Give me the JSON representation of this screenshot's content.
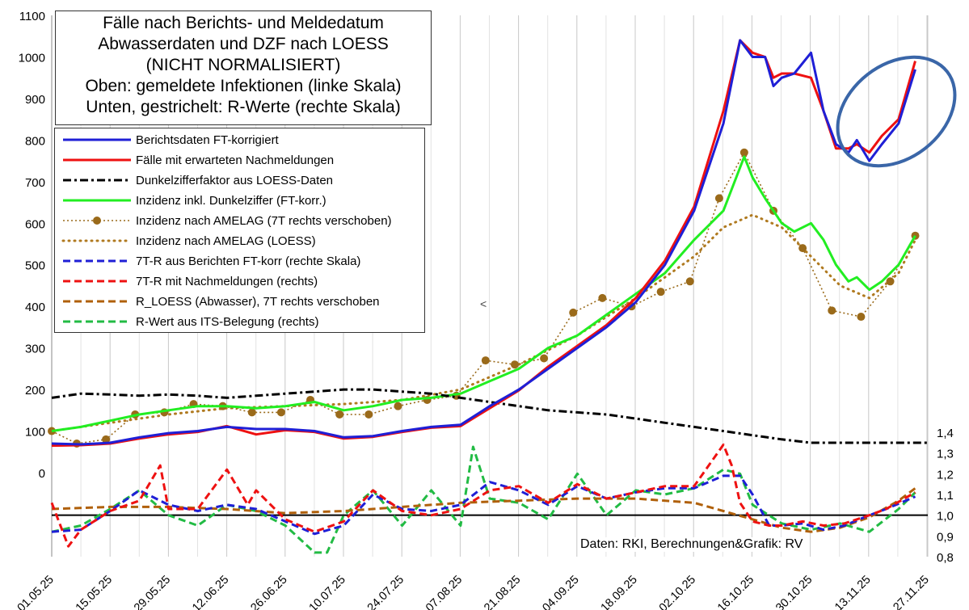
{
  "title": {
    "lines": [
      "Fälle nach Berichts- und Meldedatum",
      "Abwasserdaten und DZF nach LOESS",
      "(NICHT NORMALISIERT)",
      "Oben: gemeldete Infektionen (linke Skala)",
      "Unten, gestrichelt: R-Werte (rechte Skala)"
    ]
  },
  "credit": "Daten: RKI, Berechnungen&Grafik: RV",
  "cursor_glyph": "<",
  "legend": [
    {
      "label": "Berichtsdaten FT-korrigiert",
      "color": "#1f1fd6",
      "style": "solid"
    },
    {
      "label": "Fälle mit erwarteten Nachmeldungen",
      "color": "#ee1111",
      "style": "solid"
    },
    {
      "label": "Dunkelzifferfaktor aus LOESS-Daten",
      "color": "#000000",
      "style": "dashdot"
    },
    {
      "label": "Inzidenz inkl. Dunkelziffer (FT-korr.)",
      "color": "#22ee22",
      "style": "solid"
    },
    {
      "label": "Inzidenz nach AMELAG (7T rechts verschoben)",
      "color": "#9a6a1a",
      "style": "dotmarker"
    },
    {
      "label": "Inzidenz nach AMELAG (LOESS)",
      "color": "#b07a20",
      "style": "dots"
    },
    {
      "label": "7T-R aus Berichten FT-korr (rechte Skala)",
      "color": "#1f1fd6",
      "style": "dashed"
    },
    {
      "label": "7T-R mit Nachmeldungen (rechts)",
      "color": "#ee1111",
      "style": "dashed"
    },
    {
      "label": "R_LOESS (Abwasser), 7T rechts verschoben",
      "color": "#b0600a",
      "style": "dashed"
    },
    {
      "label": "R-Wert aus ITS-Belegung (rechts)",
      "color": "#22bb44",
      "style": "dashed"
    }
  ],
  "chart_data": {
    "type": "line",
    "x_tick_labels": [
      "01.05.25",
      "15.05.25",
      "29.05.25",
      "12.06.25",
      "26.06.25",
      "10.07.25",
      "24.07.25",
      "07.08.25",
      "21.08.25",
      "04.09.25",
      "18.09.25",
      "02.10.25",
      "16.10.25",
      "30.10.25",
      "13.11.25",
      "27.11.25"
    ],
    "x_range_days": [
      0,
      210
    ],
    "y_left": {
      "ticks": [
        0,
        100,
        200,
        300,
        400,
        500,
        600,
        700,
        800,
        900,
        1000,
        1100
      ],
      "range": [
        0,
        1100
      ],
      "tick_labels": [
        "0",
        "100",
        "200",
        "300",
        "400",
        "500",
        "600",
        "700",
        "800",
        "900",
        "1000",
        "1100"
      ]
    },
    "y_right": {
      "ticks": [
        0.8,
        0.9,
        1.0,
        1.1,
        1.2,
        1.3,
        1.4
      ],
      "range": [
        0.8,
        1.4
      ],
      "tick_labels": [
        "0,8",
        "0,9",
        "1,0",
        "1,1",
        "1,2",
        "1,3",
        "1,4"
      ]
    },
    "reference_line_right": 1.0,
    "series": [
      {
        "name": "Berichtsdaten FT-korrigiert",
        "axis": "left",
        "x": [
          0,
          7,
          14,
          21,
          28,
          35,
          42,
          49,
          56,
          63,
          70,
          77,
          84,
          91,
          98,
          105,
          112,
          119,
          126,
          133,
          140,
          147,
          154,
          161,
          165,
          168,
          171,
          173,
          175,
          178,
          182,
          185,
          188,
          191,
          193,
          196,
          199,
          203,
          207
        ],
        "y": [
          70,
          68,
          72,
          85,
          95,
          100,
          110,
          105,
          105,
          100,
          85,
          88,
          100,
          110,
          115,
          160,
          200,
          250,
          300,
          350,
          410,
          500,
          630,
          840,
          1040,
          1000,
          1000,
          930,
          950,
          960,
          1010,
          870,
          790,
          770,
          800,
          750,
          790,
          840,
          970
        ]
      },
      {
        "name": "Fälle mit erwarteten Nachmeldungen",
        "axis": "left",
        "x": [
          0,
          7,
          14,
          21,
          28,
          35,
          42,
          49,
          56,
          63,
          70,
          77,
          84,
          91,
          98,
          105,
          112,
          119,
          126,
          133,
          140,
          147,
          154,
          161,
          165,
          168,
          171,
          173,
          175,
          178,
          182,
          185,
          188,
          191,
          193,
          196,
          199,
          203,
          207
        ],
        "y": [
          65,
          66,
          70,
          82,
          92,
          98,
          112,
          92,
          102,
          98,
          82,
          86,
          98,
          108,
          112,
          155,
          198,
          255,
          305,
          355,
          420,
          510,
          640,
          870,
          1040,
          1010,
          1000,
          950,
          960,
          960,
          950,
          870,
          780,
          780,
          790,
          770,
          810,
          850,
          990
        ]
      },
      {
        "name": "Dunkelzifferfaktor aus LOESS-Daten",
        "axis": "left",
        "x": [
          0,
          7,
          14,
          21,
          28,
          35,
          42,
          49,
          56,
          63,
          70,
          77,
          84,
          91,
          98,
          105,
          112,
          119,
          126,
          133,
          140,
          147,
          154,
          161,
          168,
          175,
          182,
          189,
          196,
          203,
          210
        ],
        "y": [
          180,
          190,
          188,
          185,
          188,
          185,
          180,
          185,
          190,
          195,
          200,
          200,
          195,
          190,
          180,
          170,
          160,
          150,
          145,
          140,
          130,
          120,
          110,
          100,
          90,
          80,
          72,
          72,
          72,
          72,
          72
        ]
      },
      {
        "name": "Inzidenz inkl. Dunkelziffer (FT-korr.)",
        "axis": "left",
        "x": [
          0,
          7,
          14,
          21,
          28,
          35,
          42,
          49,
          56,
          63,
          70,
          77,
          84,
          91,
          98,
          105,
          112,
          119,
          126,
          133,
          140,
          147,
          154,
          161,
          166,
          168,
          171,
          173,
          175,
          178,
          182,
          185,
          188,
          191,
          193,
          196,
          199,
          203,
          207
        ],
        "y": [
          100,
          110,
          125,
          140,
          150,
          160,
          160,
          155,
          160,
          170,
          150,
          160,
          175,
          180,
          190,
          220,
          250,
          300,
          330,
          380,
          430,
          480,
          560,
          630,
          760,
          710,
          660,
          630,
          600,
          580,
          600,
          560,
          500,
          460,
          470,
          440,
          460,
          500,
          570
        ]
      },
      {
        "name": "Inzidenz nach AMELAG (7T rechts verschoben)",
        "axis": "left",
        "marker": true,
        "x": [
          0,
          6,
          13,
          20,
          27,
          34,
          41,
          48,
          55,
          62,
          69,
          76,
          83,
          90,
          97,
          104,
          111,
          118,
          125,
          132,
          139,
          146,
          153,
          160,
          166,
          173,
          180,
          187,
          194,
          201,
          207
        ],
        "y": [
          100,
          70,
          80,
          140,
          145,
          165,
          160,
          145,
          145,
          175,
          140,
          140,
          160,
          175,
          185,
          270,
          260,
          275,
          385,
          420,
          400,
          435,
          460,
          660,
          770,
          630,
          540,
          390,
          375,
          460,
          570
        ]
      },
      {
        "name": "Inzidenz nach AMELAG (LOESS)",
        "axis": "left",
        "x": [
          0,
          14,
          28,
          42,
          56,
          70,
          84,
          98,
          112,
          126,
          140,
          154,
          161,
          168,
          175,
          182,
          189,
          196,
          203,
          207
        ],
        "y": [
          100,
          120,
          140,
          155,
          160,
          165,
          175,
          200,
          260,
          330,
          420,
          520,
          590,
          620,
          590,
          520,
          450,
          420,
          480,
          560
        ]
      },
      {
        "name": "7T-R aus Berichten FT-korr (rechte Skala)",
        "axis": "right",
        "x": [
          0,
          7,
          14,
          21,
          28,
          35,
          42,
          49,
          56,
          63,
          70,
          77,
          84,
          91,
          98,
          105,
          112,
          119,
          126,
          133,
          140,
          147,
          154,
          161,
          165,
          168,
          172,
          175,
          180,
          185,
          190,
          196,
          200,
          207
        ],
        "y": [
          0.92,
          0.93,
          1.02,
          1.12,
          1.05,
          1.02,
          1.05,
          1.03,
          0.97,
          0.91,
          0.95,
          1.1,
          1.03,
          1.02,
          1.05,
          1.16,
          1.12,
          1.05,
          1.14,
          1.08,
          1.11,
          1.13,
          1.13,
          1.19,
          1.19,
          1.1,
          0.95,
          0.95,
          0.96,
          0.93,
          0.95,
          1.0,
          1.03,
          1.09
        ]
      },
      {
        "name": "7T-R mit Nachmeldungen (rechts)",
        "axis": "right",
        "x": [
          0,
          4,
          7,
          14,
          21,
          26,
          28,
          35,
          42,
          47,
          49,
          56,
          63,
          70,
          77,
          84,
          91,
          98,
          105,
          112,
          119,
          126,
          133,
          140,
          147,
          154,
          161,
          163,
          165,
          168,
          172,
          175,
          180,
          185,
          190,
          196,
          200,
          207
        ],
        "y": [
          1.06,
          0.85,
          0.93,
          1.02,
          1.07,
          1.24,
          1.03,
          1.03,
          1.22,
          1.05,
          1.12,
          0.98,
          0.92,
          0.97,
          1.12,
          1.02,
          1.0,
          1.03,
          1.12,
          1.14,
          1.06,
          1.15,
          1.08,
          1.11,
          1.14,
          1.14,
          1.34,
          1.24,
          1.06,
          0.97,
          0.95,
          0.95,
          0.97,
          0.95,
          0.96,
          1.0,
          1.03,
          1.11
        ]
      },
      {
        "name": "R_LOESS (Abwasser), 7T rechts verschoben",
        "axis": "right",
        "x": [
          0,
          14,
          28,
          42,
          56,
          70,
          84,
          98,
          112,
          126,
          140,
          154,
          161,
          168,
          175,
          182,
          189,
          196,
          203,
          207
        ],
        "y": [
          1.03,
          1.04,
          1.04,
          1.03,
          1.01,
          1.02,
          1.04,
          1.06,
          1.07,
          1.08,
          1.08,
          1.06,
          1.02,
          0.98,
          0.94,
          0.92,
          0.94,
          0.99,
          1.07,
          1.13
        ]
      },
      {
        "name": "R-Wert aus ITS-Belegung (rechts)",
        "axis": "right",
        "x": [
          0,
          7,
          14,
          21,
          28,
          35,
          42,
          49,
          56,
          63,
          66,
          70,
          77,
          84,
          91,
          98,
          101,
          105,
          112,
          119,
          126,
          133,
          140,
          147,
          154,
          161,
          165,
          168,
          175,
          182,
          189,
          196,
          203,
          207
        ],
        "y": [
          0.92,
          0.95,
          1.03,
          1.12,
          1.0,
          0.95,
          1.05,
          1.02,
          0.95,
          0.82,
          0.82,
          1.0,
          1.12,
          0.95,
          1.12,
          0.95,
          1.33,
          1.08,
          1.06,
          0.98,
          1.2,
          1.0,
          1.12,
          1.1,
          1.13,
          1.22,
          1.2,
          1.05,
          0.96,
          0.93,
          0.96,
          0.92,
          1.03,
          1.11
        ]
      }
    ],
    "annotations": [
      {
        "type": "ellipse",
        "color": "#3a66a8",
        "around": "Berichtsdaten FT-korrigiert, 09.11.25–28.11.25"
      }
    ],
    "grid": "vertical-lines"
  }
}
